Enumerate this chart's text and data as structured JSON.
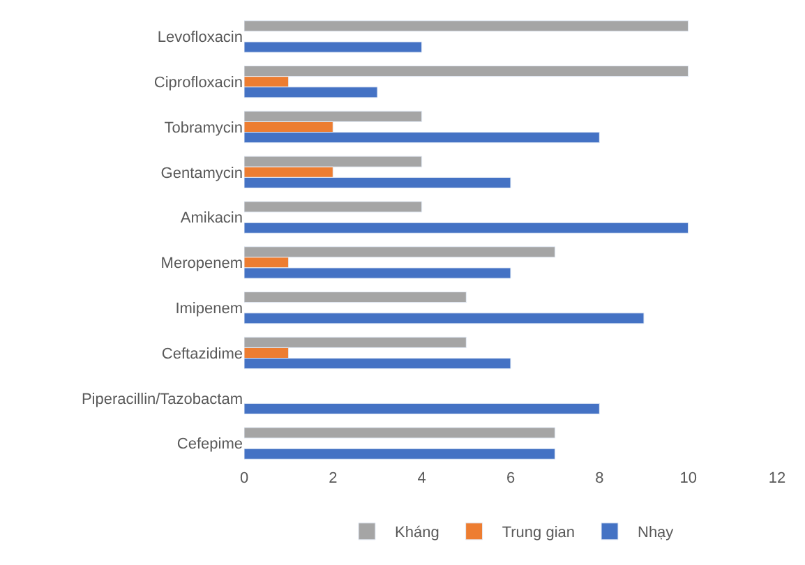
{
  "chart_data": {
    "type": "bar",
    "orientation": "horizontal",
    "categories": [
      "Levofloxacin",
      "Ciprofloxacin",
      "Tobramycin",
      "Gentamycin",
      "Amikacin",
      "Meropenem",
      "Imipenem",
      "Ceftazidime",
      "Piperacillin/Tazobactam",
      "Cefepime"
    ],
    "series": [
      {
        "name": "Kháng",
        "color": "#a5a5a5",
        "values": [
          10,
          10,
          4,
          4,
          4,
          7,
          5,
          5,
          null,
          7
        ]
      },
      {
        "name": "Trung gian",
        "color": "#ed7d31",
        "values": [
          null,
          1,
          2,
          2,
          null,
          1,
          null,
          1,
          null,
          null
        ]
      },
      {
        "name": "Nhạy",
        "color": "#4472c4",
        "values": [
          4,
          3,
          8,
          6,
          10,
          6,
          9,
          6,
          8,
          7
        ]
      }
    ],
    "xlim": [
      0,
      12
    ],
    "xticks": [
      0,
      2,
      4,
      6,
      8,
      10,
      12
    ],
    "grid": false,
    "legend": "bottom"
  }
}
